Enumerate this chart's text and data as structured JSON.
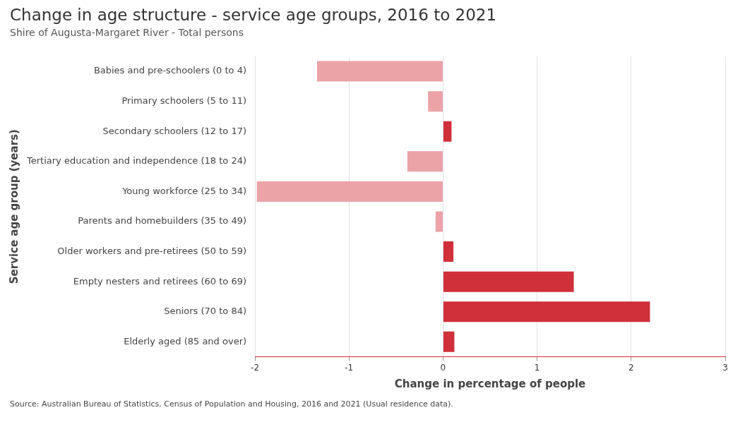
{
  "chart_data": {
    "type": "bar",
    "orientation": "horizontal",
    "title": "Change in age structure - service age groups, 2016 to 2021",
    "subtitle": "Shire of Augusta-Margaret River - Total persons",
    "xlabel": "Change in percentage of people",
    "ylabel": "Service age group (years)",
    "categories": [
      "Babies and pre-schoolers (0 to 4)",
      "Primary schoolers (5 to 11)",
      "Secondary schoolers (12 to 17)",
      "Tertiary education and independence (18 to 24)",
      "Young workforce (25 to 34)",
      "Parents and homebuilders (35 to 49)",
      "Older workers and pre-retirees (50 to 59)",
      "Empty nesters and retirees (60 to 69)",
      "Seniors (70 to 84)",
      "Elderly aged (85 and over)"
    ],
    "values": [
      -1.34,
      -0.16,
      0.09,
      -0.38,
      -1.98,
      -0.08,
      0.11,
      1.39,
      2.2,
      0.12
    ],
    "colors": [
      "#eba3a8",
      "#eba3a8",
      "#d0303a",
      "#eba3a8",
      "#eba3a8",
      "#eba3a8",
      "#d0303a",
      "#d0303a",
      "#d0303a",
      "#d0303a"
    ],
    "xlim": [
      -2,
      3
    ],
    "xticks": [
      -2,
      -1,
      0,
      1,
      2,
      3
    ],
    "grid": "x",
    "legend": false,
    "annotations": [
      "Source: Australian Bureau of Statistics, Census of Population and Housing, 2016 and 2021 (Usual residence data)."
    ]
  }
}
